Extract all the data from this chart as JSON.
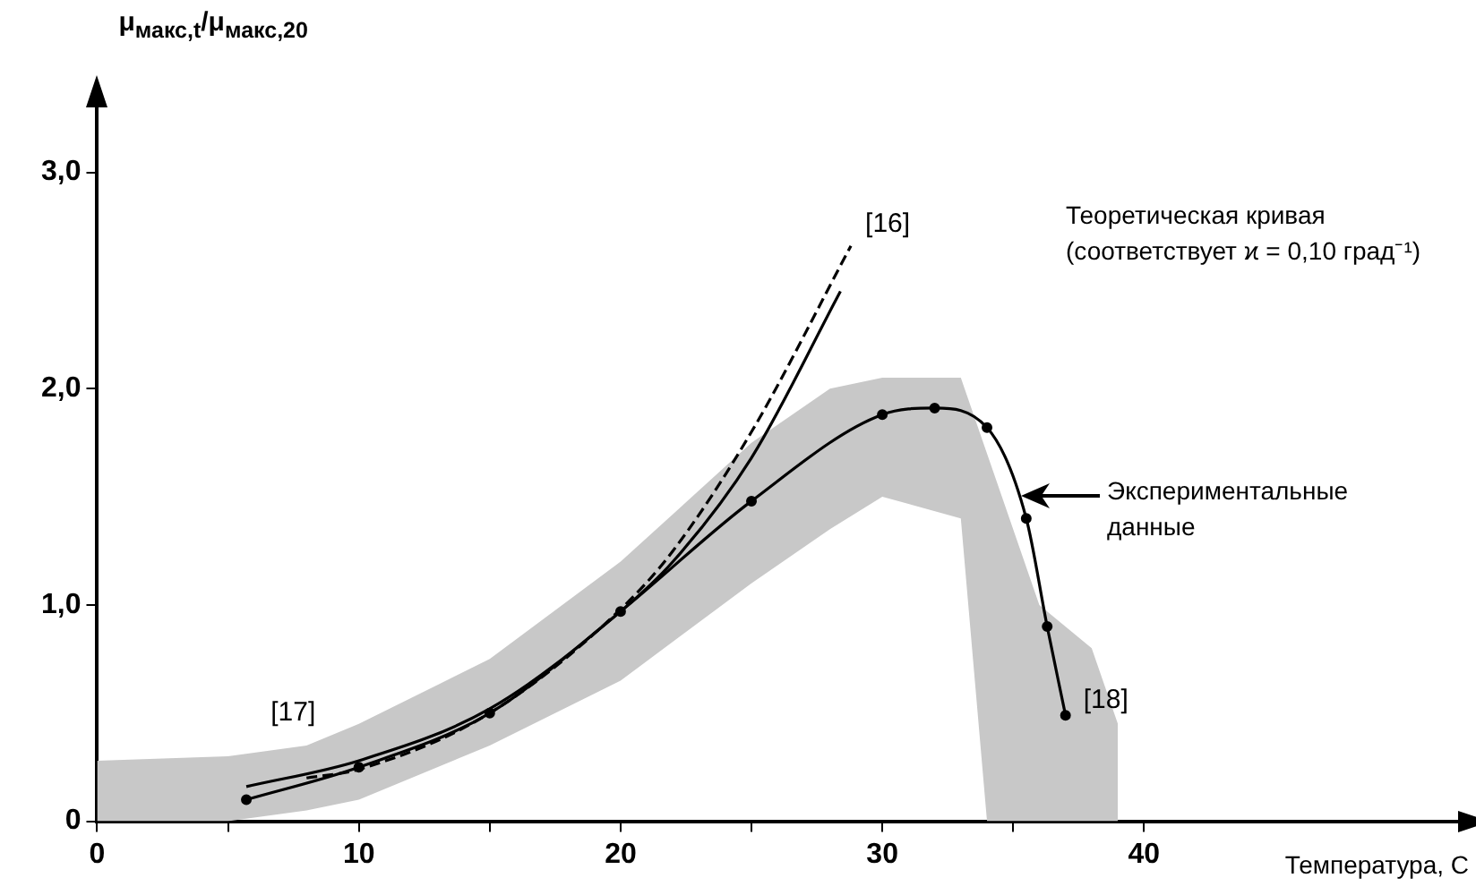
{
  "chart_data": {
    "type": "line",
    "ylabel": "μ$_{макс,t}$/μ$_{макс,20}$",
    "xlabel": "Температура, С",
    "xlim": [
      0,
      52
    ],
    "ylim": [
      0,
      3.3
    ],
    "xticks": [
      0,
      {
        "value": 5,
        "label": null
      },
      10,
      {
        "value": 15,
        "label": null
      },
      20,
      {
        "value": 25,
        "label": null
      },
      30,
      {
        "value": 35,
        "label": null
      },
      40
    ],
    "yticks": [
      0,
      {
        "value": 1,
        "label": "1,0"
      },
      {
        "value": 2,
        "label": "2,0"
      },
      {
        "value": 3,
        "label": "3,0"
      }
    ],
    "grid": false,
    "legend": false,
    "series": [
      {
        "type": "line",
        "color": "#c8c8c8",
        "x": [
          0,
          5,
          8,
          10,
          15,
          20,
          25,
          28,
          30,
          33,
          34,
          36,
          38,
          39
        ],
        "values": [
          null,
          null,
          null,
          null,
          null,
          null,
          null,
          null,
          null,
          null,
          null,
          null,
          null,
          null
        ],
        "lower": [
          0,
          0,
          0.05,
          0.1,
          0.35,
          0.65,
          1.1,
          1.35,
          1.5,
          1.4,
          0,
          0,
          0,
          0
        ],
        "upper": [
          0.28,
          0.3,
          0.35,
          0.45,
          0.75,
          1.2,
          1.75,
          2.0,
          2.05,
          2.05,
          1.7,
          1.0,
          0.8,
          0.45
        ]
      },
      {
        "type": "line",
        "color": "#000000",
        "marker": "circle",
        "line_style": "solid",
        "x": [
          5.7,
          10,
          15,
          20,
          25,
          30,
          32,
          34,
          35.5,
          36.3,
          37
        ],
        "values": [
          0.1,
          0.25,
          0.5,
          0.97,
          1.48,
          1.88,
          1.91,
          1.82,
          1.4,
          0.9,
          0.49
        ]
      },
      {
        "type": "line",
        "color": "#000000",
        "marker": "none",
        "line_style": "solid",
        "x": [
          5.7,
          10,
          15,
          20,
          22,
          25,
          28.4
        ],
        "values": [
          0.16,
          0.28,
          0.52,
          0.97,
          1.2,
          1.68,
          2.45
        ]
      },
      {
        "type": "line",
        "color": "#000000",
        "marker": "none",
        "line_style": "dashed",
        "x": [
          8,
          10,
          15,
          20,
          22,
          25,
          28.8
        ],
        "values": [
          0.2,
          0.24,
          0.5,
          0.98,
          1.25,
          1.8,
          2.66
        ]
      }
    ],
    "annotations": [
      {
        "text": "[16]",
        "x": 28.8,
        "y": 2.66
      },
      {
        "text": "[17]",
        "x": 8,
        "y": 0.2
      },
      {
        "text": "[18]",
        "x": 37,
        "y": 0.49
      },
      "Теоретическая кривая (соответствует ϰ = 0,10 град⁻¹)",
      "Экспериментальные данные"
    ]
  }
}
